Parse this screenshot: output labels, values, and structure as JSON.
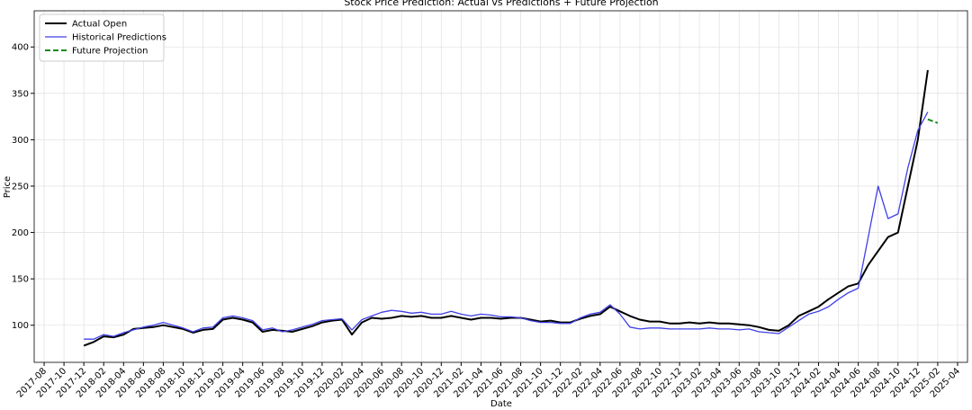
{
  "chart_data": {
    "type": "line",
    "title": "Stock Price Prediction: Actual vs Predictions + Future Projection",
    "xlabel": "Date",
    "ylabel": "Price",
    "xlim": [
      "2017-07",
      "2025-05"
    ],
    "ylim": [
      60,
      439
    ],
    "yticks": [
      100,
      150,
      200,
      250,
      300,
      350,
      400
    ],
    "xticks": [
      "2017-08",
      "2017-10",
      "2017-12",
      "2018-02",
      "2018-04",
      "2018-06",
      "2018-08",
      "2018-10",
      "2018-12",
      "2019-02",
      "2019-04",
      "2019-06",
      "2019-08",
      "2019-10",
      "2019-12",
      "2020-02",
      "2020-04",
      "2020-06",
      "2020-08",
      "2020-10",
      "2020-12",
      "2021-02",
      "2021-04",
      "2021-06",
      "2021-08",
      "2021-10",
      "2021-12",
      "2022-02",
      "2022-04",
      "2022-06",
      "2022-08",
      "2022-10",
      "2022-12",
      "2023-02",
      "2023-04",
      "2023-06",
      "2023-08",
      "2023-10",
      "2023-12",
      "2024-02",
      "2024-04",
      "2024-06",
      "2024-08",
      "2024-10",
      "2024-12",
      "2025-02",
      "2025-04"
    ],
    "grid": true,
    "legend": "upper left",
    "x": [
      "2017-12",
      "2018-01",
      "2018-02",
      "2018-03",
      "2018-04",
      "2018-05",
      "2018-06",
      "2018-07",
      "2018-08",
      "2018-09",
      "2018-10",
      "2018-11",
      "2018-12",
      "2019-01",
      "2019-02",
      "2019-03",
      "2019-04",
      "2019-05",
      "2019-06",
      "2019-07",
      "2019-08",
      "2019-09",
      "2019-10",
      "2019-11",
      "2019-12",
      "2020-01",
      "2020-02",
      "2020-03",
      "2020-04",
      "2020-05",
      "2020-06",
      "2020-07",
      "2020-08",
      "2020-09",
      "2020-10",
      "2020-11",
      "2020-12",
      "2021-01",
      "2021-02",
      "2021-03",
      "2021-04",
      "2021-05",
      "2021-06",
      "2021-07",
      "2021-08",
      "2021-09",
      "2021-10",
      "2021-11",
      "2021-12",
      "2022-01",
      "2022-02",
      "2022-03",
      "2022-04",
      "2022-05",
      "2022-06",
      "2022-07",
      "2022-08",
      "2022-09",
      "2022-10",
      "2022-11",
      "2022-12",
      "2023-01",
      "2023-02",
      "2023-03",
      "2023-04",
      "2023-05",
      "2023-06",
      "2023-07",
      "2023-08",
      "2023-09",
      "2023-10",
      "2023-11",
      "2023-12",
      "2024-01",
      "2024-02",
      "2024-03",
      "2024-04",
      "2024-05",
      "2024-06",
      "2024-07",
      "2024-08",
      "2024-09",
      "2024-10",
      "2024-11",
      "2024-12",
      "2025-01"
    ],
    "series": [
      {
        "name": "Actual Open",
        "color": "#000000",
        "width": 2,
        "dash": false,
        "values": [
          78,
          82,
          88,
          87,
          90,
          96,
          97,
          98,
          100,
          98,
          96,
          92,
          95,
          96,
          106,
          108,
          106,
          103,
          93,
          95,
          94,
          93,
          96,
          99,
          103,
          105,
          106,
          90,
          103,
          108,
          107,
          108,
          110,
          109,
          110,
          108,
          108,
          110,
          108,
          106,
          108,
          108,
          107,
          108,
          108,
          106,
          104,
          105,
          103,
          103,
          107,
          110,
          112,
          120,
          115,
          110,
          106,
          104,
          104,
          102,
          102,
          103,
          102,
          103,
          102,
          102,
          101,
          100,
          98,
          95,
          94,
          100,
          110,
          115,
          120,
          128,
          135,
          142,
          145,
          165,
          180,
          195,
          200,
          250,
          300,
          375
        ]
      },
      {
        "name": "Historical Predictions",
        "color": "#4040e8",
        "width": 1.3,
        "dash": false,
        "values": [
          85,
          85,
          90,
          88,
          92,
          95,
          98,
          100,
          103,
          100,
          97,
          93,
          97,
          98,
          108,
          110,
          108,
          105,
          95,
          97,
          93,
          95,
          98,
          101,
          105,
          106,
          107,
          95,
          106,
          110,
          114,
          116,
          115,
          113,
          114,
          112,
          112,
          115,
          112,
          110,
          112,
          111,
          109,
          109,
          108,
          105,
          103,
          103,
          102,
          102,
          108,
          112,
          114,
          122,
          112,
          98,
          96,
          97,
          97,
          96,
          96,
          96,
          96,
          97,
          96,
          96,
          95,
          96,
          93,
          92,
          91,
          98,
          105,
          112,
          115,
          120,
          128,
          135,
          140,
          195,
          250,
          215,
          220,
          270,
          310,
          330
        ]
      },
      {
        "name": "Future Projection",
        "color": "#1a8a1a",
        "width": 2,
        "dash": true,
        "x": [
          "2025-01",
          "2025-02"
        ],
        "values": [
          322,
          318
        ]
      }
    ]
  }
}
